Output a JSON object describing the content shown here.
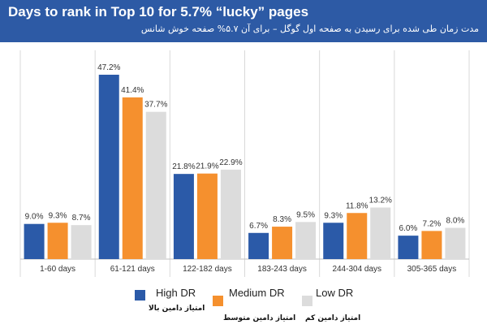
{
  "header": {
    "title": "Days to rank in Top 10 for 5.7% “lucky” pages",
    "subtitle": "مدت زمان طی شده برای رسیدن به صفحه اول گوگل – برای آن ۵.۷% صفحه خوش شانس"
  },
  "colors": {
    "high": "#2b5aa8",
    "medium": "#f5902e",
    "low": "#dcdcdc",
    "header_bg": "#2d5aa5"
  },
  "legend": {
    "high": {
      "label": "High DR",
      "label_fa": "امتیاز دامین بالا"
    },
    "medium": {
      "label": "Medium DR",
      "label_fa": "امتیاز دامین متوسط"
    },
    "low": {
      "label": "Low DR",
      "label_fa": "امتیاز دامین کم"
    }
  },
  "chart_data": {
    "type": "bar",
    "title": "Days to rank in Top 10 for 5.7% “lucky” pages",
    "categories": [
      "1-60 days",
      "61-121 days",
      "122-182 days",
      "183-243 days",
      "244-304 days",
      "305-365 days"
    ],
    "series": [
      {
        "name": "High DR",
        "values": [
          9.0,
          47.2,
          21.8,
          6.7,
          9.3,
          6.0
        ],
        "labels": [
          "9.0%",
          "47.2%",
          "21.8%",
          "6.7%",
          "9.3%",
          "6.0%"
        ]
      },
      {
        "name": "Medium DR",
        "values": [
          9.3,
          41.4,
          21.9,
          8.3,
          11.8,
          7.2
        ],
        "labels": [
          "9.3%",
          "41.4%",
          "21.9%",
          "8.3%",
          "11.8%",
          "7.2%"
        ]
      },
      {
        "name": "Low DR",
        "values": [
          8.7,
          37.7,
          22.9,
          9.5,
          13.2,
          8.0
        ],
        "labels": [
          "8.7%",
          "37.7%",
          "22.9%",
          "9.5%",
          "13.2%",
          "8.0%"
        ]
      }
    ],
    "ylim": [
      0,
      50
    ],
    "grid": "vertical category separators",
    "legend_position": "bottom"
  }
}
